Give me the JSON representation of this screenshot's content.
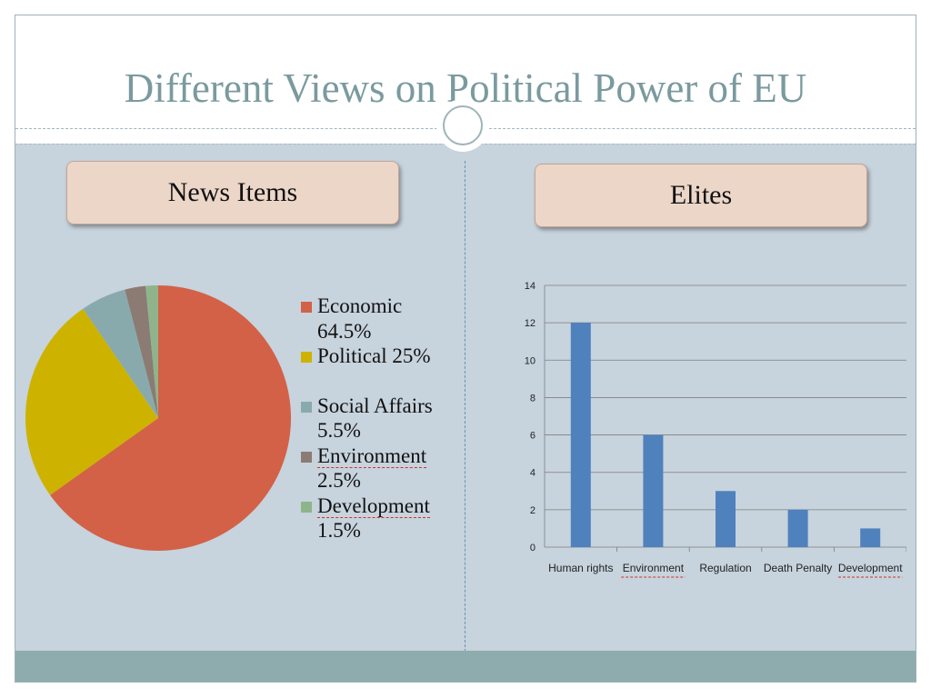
{
  "slide": {
    "title": "Different Views on Political Power of EU",
    "left_heading": "News Items",
    "right_heading": "Elites"
  },
  "colors": {
    "title": "#7a9a9e",
    "panel": "#c7d3dd",
    "footer": "#8eacad",
    "heading_box": "#ecd6c8",
    "bar": "#4f81bd"
  },
  "legend": [
    {
      "line1": "Economic",
      "line2": "64.5%",
      "color": "#d36147"
    },
    {
      "line1": "Political 25%",
      "line2": "",
      "color": "#cdb300"
    },
    {
      "line1": "Social Affairs",
      "line2": "5.5%",
      "color": "#88aaad"
    },
    {
      "line1": "Environment",
      "line2": "2.5%",
      "color": "#8c7b72"
    },
    {
      "line1": "Development",
      "line2": "1.5%",
      "color": "#8fb48b"
    }
  ],
  "chart_data": [
    {
      "type": "pie",
      "title": "News Items",
      "categories": [
        "Economic",
        "Political",
        "Social Affairs",
        "Environment",
        "Development"
      ],
      "values": [
        64.5,
        25,
        5.5,
        2.5,
        1.5
      ],
      "colors": [
        "#d36147",
        "#cdb300",
        "#88aaad",
        "#8c7b72",
        "#8fb48b"
      ],
      "legend_position": "right"
    },
    {
      "type": "bar",
      "title": "Elites",
      "categories": [
        "Human rights",
        "Environment",
        "Regulation",
        "Death Penalty",
        "Development"
      ],
      "values": [
        12,
        6,
        3,
        2,
        1
      ],
      "ylim": [
        0,
        14
      ],
      "yticks": [
        0,
        2,
        4,
        6,
        8,
        10,
        12,
        14
      ],
      "grid": true,
      "color": "#4f81bd"
    }
  ]
}
